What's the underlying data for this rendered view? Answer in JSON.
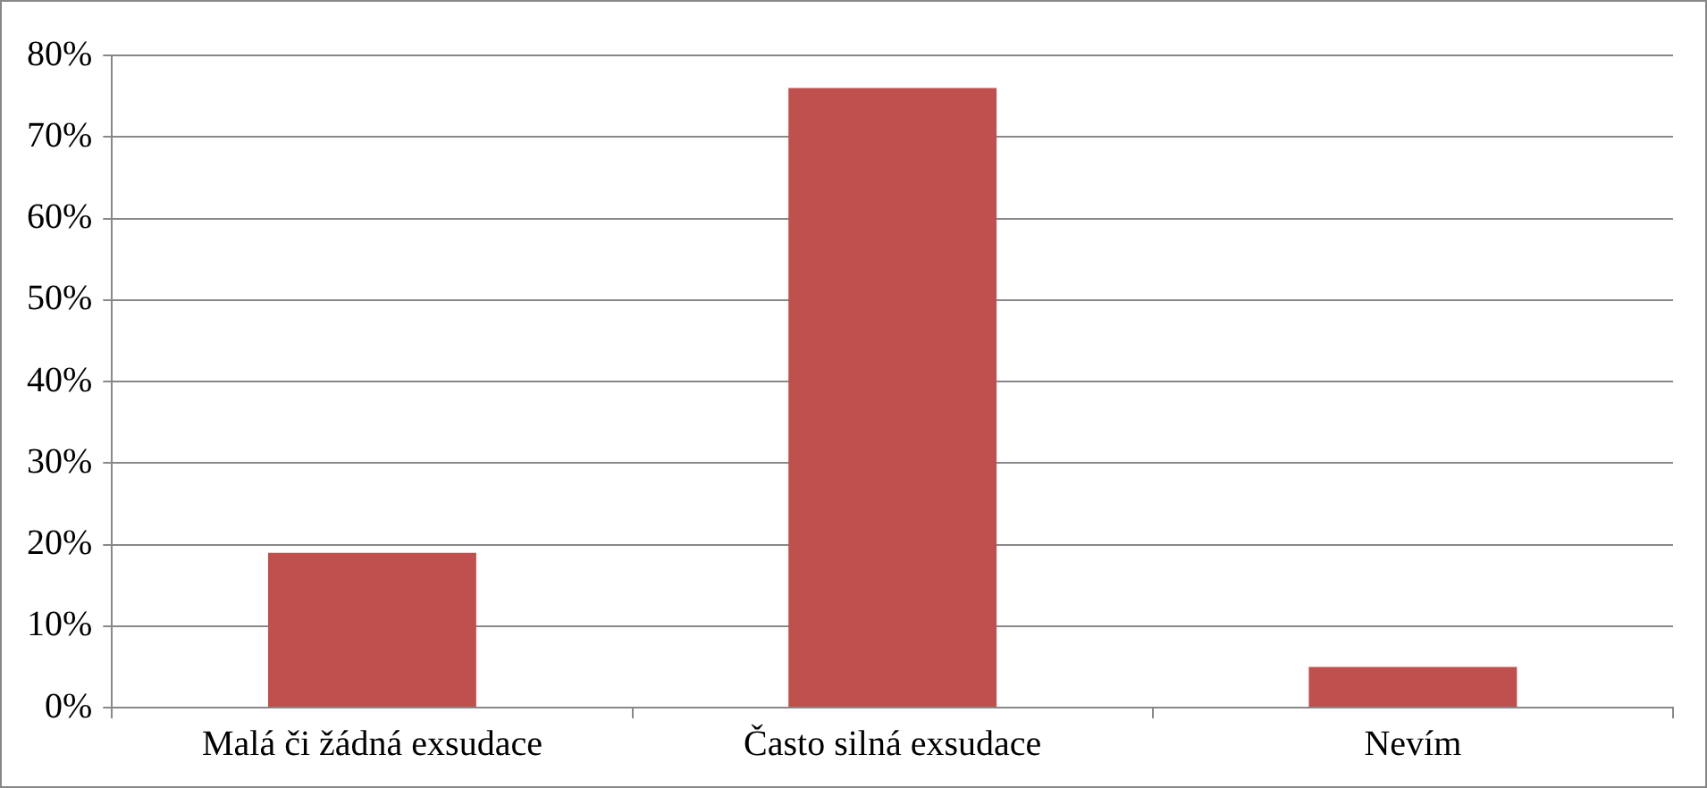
{
  "chart_data": {
    "type": "bar",
    "categories": [
      "Malá či žádná exsudace",
      "Často silná exsudace",
      "Nevím"
    ],
    "values": [
      19,
      76,
      5
    ],
    "color": "#c0504d",
    "ylim": [
      0,
      80
    ],
    "yticks": [
      {
        "value": 0,
        "label": "0%"
      },
      {
        "value": 10,
        "label": "10%"
      },
      {
        "value": 20,
        "label": "20%"
      },
      {
        "value": 30,
        "label": "30%"
      },
      {
        "value": 40,
        "label": "40%"
      },
      {
        "value": 50,
        "label": "50%"
      },
      {
        "value": 60,
        "label": "60%"
      },
      {
        "value": 70,
        "label": "70%"
      },
      {
        "value": 80,
        "label": "80%"
      }
    ],
    "grid": "y"
  }
}
